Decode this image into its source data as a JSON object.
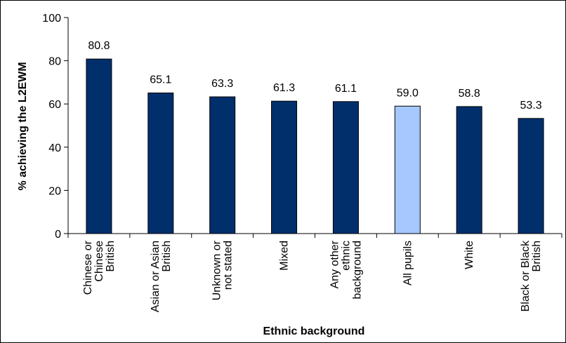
{
  "chart_data": {
    "type": "bar",
    "x_label": "Ethnic background",
    "y_label": "% achieving the L2EWM",
    "categories": [
      [
        "Chinese or",
        "Chinese",
        "British"
      ],
      [
        "Asian or Asian",
        "British"
      ],
      [
        "Unknown or",
        "not stated"
      ],
      [
        "Mixed"
      ],
      [
        "Any other",
        "ethnic",
        "background"
      ],
      [
        "All pupils"
      ],
      [
        "White"
      ],
      [
        "Black or Black",
        "British"
      ]
    ],
    "values": [
      80.8,
      65.1,
      63.3,
      61.3,
      61.1,
      59.0,
      58.8,
      53.3
    ],
    "value_labels": [
      "80.8",
      "65.1",
      "63.3",
      "61.3",
      "61.1",
      "59.0",
      "58.8",
      "53.3"
    ],
    "colors": [
      "#002f6c",
      "#002f6c",
      "#002f6c",
      "#002f6c",
      "#002f6c",
      "#a6c8ff",
      "#002f6c",
      "#002f6c"
    ],
    "ylim": [
      0,
      100
    ],
    "yticks": [
      0,
      20,
      40,
      60,
      80,
      100
    ],
    "grid": false
  }
}
